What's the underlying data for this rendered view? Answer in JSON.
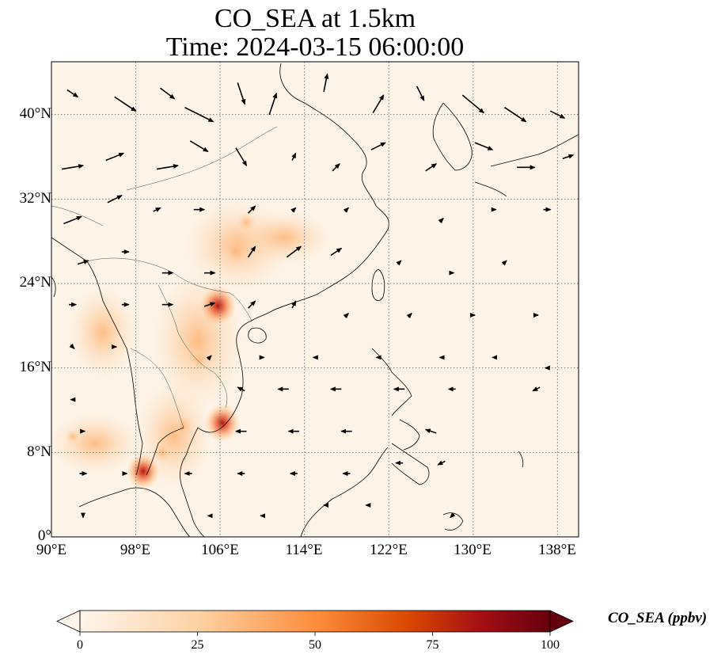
{
  "title_line1": "CO_SEA at 1.5km",
  "title_line2": "Time: 2024-03-15 06:00:00",
  "lat_labels": [
    "40°N",
    "32°N",
    "24°N",
    "16°N",
    "8°N",
    "0°"
  ],
  "lon_labels": [
    "90°E",
    "98°E",
    "106°E",
    "114°E",
    "122°E",
    "130°E",
    "138°E"
  ],
  "colorbar": {
    "title": "CO_SEA (ppbv)",
    "ticks": [
      "0",
      "25",
      "50",
      "75",
      "100"
    ],
    "range": [
      0,
      100
    ],
    "colormap": [
      "#fff5eb",
      "#fdd2a5",
      "#fd8d3c",
      "#d94801",
      "#a50f15",
      "#67000d"
    ],
    "extend": "both"
  },
  "map": {
    "lon_range": [
      90,
      140
    ],
    "lat_range": [
      0,
      45
    ],
    "grid_lons": [
      90,
      98,
      106,
      114,
      122,
      130,
      138
    ],
    "grid_lats": [
      0,
      8,
      16,
      24,
      32,
      40
    ],
    "gridlines": true,
    "coastline_color": "#000000",
    "co_hotspots": [
      {
        "lon": 105.8,
        "lat": 21.9,
        "value": 80
      },
      {
        "lon": 106.2,
        "lat": 10.8,
        "value": 75
      },
      {
        "lon": 98.7,
        "lat": 6.2,
        "value": 70
      },
      {
        "lon": 107.5,
        "lat": 27.0,
        "value": 40
      },
      {
        "lon": 102.5,
        "lat": 10.5,
        "value": 35
      },
      {
        "lon": 108.5,
        "lat": 29.8,
        "value": 30
      },
      {
        "lon": 104.0,
        "lat": 16.8,
        "value": 28
      },
      {
        "lon": 100.5,
        "lat": 8.0,
        "value": 30
      },
      {
        "lon": 92.0,
        "lat": 9.5,
        "value": 15
      }
    ]
  },
  "wind_vectors": [
    {
      "lon": 92,
      "lat": 42,
      "u": 3,
      "v": -2
    },
    {
      "lon": 97,
      "lat": 41,
      "u": 6,
      "v": -4
    },
    {
      "lon": 101,
      "lat": 42,
      "u": 4,
      "v": -3
    },
    {
      "lon": 104,
      "lat": 40,
      "u": 8,
      "v": -4
    },
    {
      "lon": 108,
      "lat": 42,
      "u": 2,
      "v": -6
    },
    {
      "lon": 111,
      "lat": 41,
      "u": 2,
      "v": 6
    },
    {
      "lon": 116,
      "lat": 43,
      "u": 1,
      "v": 5
    },
    {
      "lon": 121,
      "lat": 41,
      "u": 3,
      "v": 5
    },
    {
      "lon": 125,
      "lat": 42,
      "u": 2,
      "v": -4
    },
    {
      "lon": 130,
      "lat": 41,
      "u": 6,
      "v": -5
    },
    {
      "lon": 134,
      "lat": 40,
      "u": 6,
      "v": -4
    },
    {
      "lon": 138,
      "lat": 40,
      "u": 4,
      "v": -2
    },
    {
      "lon": 92,
      "lat": 35,
      "u": 6,
      "v": 1
    },
    {
      "lon": 96,
      "lat": 36,
      "u": 5,
      "v": 2
    },
    {
      "lon": 101,
      "lat": 35,
      "u": 6,
      "v": 1
    },
    {
      "lon": 104,
      "lat": 37,
      "u": 5,
      "v": -3
    },
    {
      "lon": 108,
      "lat": 36,
      "u": 3,
      "v": -5
    },
    {
      "lon": 113,
      "lat": 36,
      "u": 1,
      "v": 2
    },
    {
      "lon": 117,
      "lat": 35,
      "u": 2,
      "v": 2
    },
    {
      "lon": 121,
      "lat": 37,
      "u": 4,
      "v": 2
    },
    {
      "lon": 126,
      "lat": 35,
      "u": 3,
      "v": 2
    },
    {
      "lon": 131,
      "lat": 37,
      "u": 5,
      "v": -2
    },
    {
      "lon": 135,
      "lat": 35,
      "u": 5,
      "v": 0
    },
    {
      "lon": 139,
      "lat": 36,
      "u": 3,
      "v": 1
    },
    {
      "lon": 92,
      "lat": 30,
      "u": 5,
      "v": 2
    },
    {
      "lon": 96,
      "lat": 32,
      "u": 4,
      "v": 2
    },
    {
      "lon": 100,
      "lat": 31,
      "u": 2,
      "v": 1
    },
    {
      "lon": 104,
      "lat": 31,
      "u": 3,
      "v": 0
    },
    {
      "lon": 109,
      "lat": 31,
      "u": 2,
      "v": 2
    },
    {
      "lon": 113,
      "lat": 31,
      "u": 1,
      "v": 1
    },
    {
      "lon": 118,
      "lat": 31,
      "u": 1,
      "v": 1
    },
    {
      "lon": 127,
      "lat": 30,
      "u": 1,
      "v": 1
    },
    {
      "lon": 132,
      "lat": 31,
      "u": 1,
      "v": 0
    },
    {
      "lon": 137,
      "lat": 31,
      "u": 2,
      "v": 0
    },
    {
      "lon": 93,
      "lat": 26,
      "u": 3,
      "v": 1
    },
    {
      "lon": 97,
      "lat": 27,
      "u": 2,
      "v": 0
    },
    {
      "lon": 101,
      "lat": 25,
      "u": 3,
      "v": 0
    },
    {
      "lon": 105,
      "lat": 25,
      "u": 3,
      "v": 0
    },
    {
      "lon": 109,
      "lat": 27,
      "u": 2,
      "v": 3
    },
    {
      "lon": 113,
      "lat": 27,
      "u": 4,
      "v": 3
    },
    {
      "lon": 117,
      "lat": 27,
      "u": 3,
      "v": 2
    },
    {
      "lon": 123,
      "lat": 26,
      "u": 1,
      "v": 1
    },
    {
      "lon": 128,
      "lat": 25,
      "u": 1,
      "v": 0
    },
    {
      "lon": 133,
      "lat": 26,
      "u": 1,
      "v": 1
    },
    {
      "lon": 92,
      "lat": 22,
      "u": 2,
      "v": 0
    },
    {
      "lon": 97,
      "lat": 22,
      "u": 2,
      "v": 0
    },
    {
      "lon": 101,
      "lat": 22,
      "u": 3,
      "v": 0
    },
    {
      "lon": 105,
      "lat": 22,
      "u": 3,
      "v": 1
    },
    {
      "lon": 109,
      "lat": 22,
      "u": 2,
      "v": 2
    },
    {
      "lon": 113,
      "lat": 22,
      "u": 1,
      "v": 2
    },
    {
      "lon": 118,
      "lat": 21,
      "u": 1,
      "v": 1
    },
    {
      "lon": 124,
      "lat": 21,
      "u": 1,
      "v": 1
    },
    {
      "lon": 130,
      "lat": 21,
      "u": 1,
      "v": 0
    },
    {
      "lon": 136,
      "lat": 21,
      "u": 1,
      "v": 0
    },
    {
      "lon": 92,
      "lat": 18,
      "u": 1,
      "v": -1
    },
    {
      "lon": 96,
      "lat": 18,
      "u": 1,
      "v": 0
    },
    {
      "lon": 105,
      "lat": 17,
      "u": 1,
      "v": 1
    },
    {
      "lon": 110,
      "lat": 17,
      "u": 1,
      "v": 0
    },
    {
      "lon": 115,
      "lat": 17,
      "u": -1,
      "v": 0
    },
    {
      "lon": 121,
      "lat": 17,
      "u": -1,
      "v": 0
    },
    {
      "lon": 127,
      "lat": 17,
      "u": -1,
      "v": 0
    },
    {
      "lon": 132,
      "lat": 17,
      "u": -1,
      "v": 0
    },
    {
      "lon": 137,
      "lat": 16,
      "u": -1,
      "v": 0
    },
    {
      "lon": 92,
      "lat": 13,
      "u": -1,
      "v": 0
    },
    {
      "lon": 108,
      "lat": 14,
      "u": -2,
      "v": 1
    },
    {
      "lon": 112,
      "lat": 14,
      "u": -3,
      "v": 0
    },
    {
      "lon": 117,
      "lat": 14,
      "u": -3,
      "v": 0
    },
    {
      "lon": 123,
      "lat": 14,
      "u": -3,
      "v": 0
    },
    {
      "lon": 128,
      "lat": 14,
      "u": -2,
      "v": 0
    },
    {
      "lon": 136,
      "lat": 14,
      "u": -2,
      "v": -1
    },
    {
      "lon": 93,
      "lat": 10,
      "u": 1,
      "v": 0
    },
    {
      "lon": 108,
      "lat": 10,
      "u": -3,
      "v": 0
    },
    {
      "lon": 113,
      "lat": 10,
      "u": -3,
      "v": 0
    },
    {
      "lon": 118,
      "lat": 10,
      "u": -3,
      "v": 0
    },
    {
      "lon": 126,
      "lat": 10,
      "u": -3,
      "v": 1
    },
    {
      "lon": 93,
      "lat": 6,
      "u": 2,
      "v": 0
    },
    {
      "lon": 97,
      "lat": 6,
      "u": 1,
      "v": 0
    },
    {
      "lon": 103,
      "lat": 6,
      "u": -2,
      "v": 0
    },
    {
      "lon": 108,
      "lat": 6,
      "u": -2,
      "v": 0
    },
    {
      "lon": 113,
      "lat": 6,
      "u": -2,
      "v": 0
    },
    {
      "lon": 118,
      "lat": 6,
      "u": -2,
      "v": 0
    },
    {
      "lon": 123,
      "lat": 7,
      "u": -2,
      "v": 0
    },
    {
      "lon": 127,
      "lat": 7,
      "u": -2,
      "v": -1
    },
    {
      "lon": 93,
      "lat": 2,
      "u": 0,
      "v": -1
    },
    {
      "lon": 105,
      "lat": 2,
      "u": -1,
      "v": 0
    },
    {
      "lon": 110,
      "lat": 2,
      "u": -1,
      "v": 0
    },
    {
      "lon": 116,
      "lat": 3,
      "u": -1,
      "v": 0
    },
    {
      "lon": 120,
      "lat": 3,
      "u": -1,
      "v": 0
    },
    {
      "lon": 128,
      "lat": 2,
      "u": -1,
      "v": -1
    }
  ]
}
